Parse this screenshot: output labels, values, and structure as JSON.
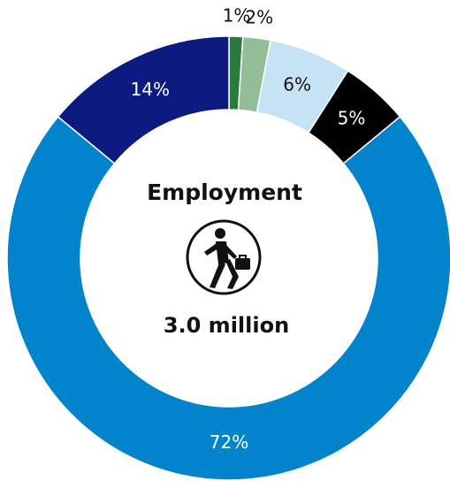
{
  "chart_data": {
    "type": "pie",
    "donut": true,
    "center_title": "Employment",
    "center_icon": "walking-person-with-briefcase-icon",
    "center_value": "3.0 million",
    "slices": [
      {
        "label": "1%",
        "value": 1,
        "color": "#2a7a3b",
        "label_color": "#111111"
      },
      {
        "label": "2%",
        "value": 2,
        "color": "#93bd96",
        "label_color": "#111111"
      },
      {
        "label": "6%",
        "value": 6,
        "color": "#c6e2f5",
        "label_color": "#111111"
      },
      {
        "label": "5%",
        "value": 5,
        "color": "#000000",
        "label_color": "#ffffff"
      },
      {
        "label": "72%",
        "value": 72,
        "color": "#0284cc",
        "label_color": "#ffffff"
      },
      {
        "label": "14%",
        "value": 14,
        "color": "#0d1a80",
        "label_color": "#ffffff"
      }
    ]
  }
}
